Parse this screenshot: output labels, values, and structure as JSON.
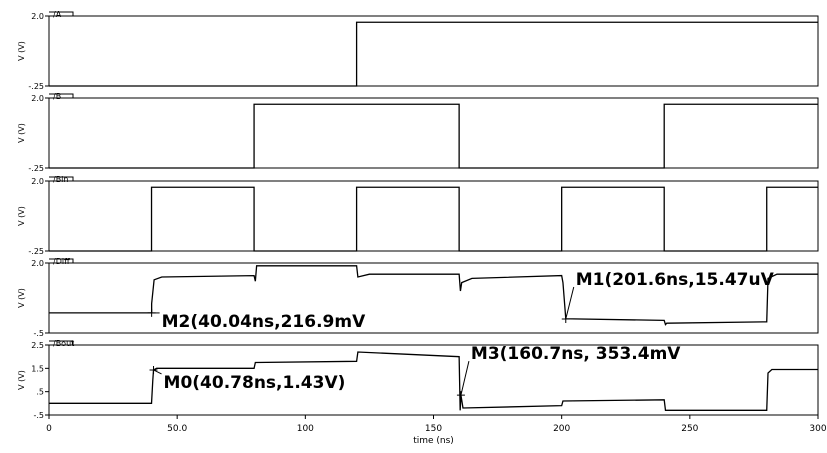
{
  "chart_data": {
    "type": "line",
    "x_axis": {
      "label": "time (ns)",
      "range": [
        0,
        300
      ],
      "ticks": [
        "0",
        "50.0",
        "100",
        "150",
        "200",
        "250",
        "300"
      ],
      "tick_values": [
        0,
        50,
        100,
        150,
        200,
        250,
        300
      ]
    },
    "panels": [
      {
        "name": "/A",
        "ylabel": "V (V)",
        "ylim": [
          -0.25,
          2.0
        ],
        "ticks": [
          {
            "label": "2.0",
            "value": 2.0
          },
          {
            "label": "-.25",
            "value": -0.25
          }
        ],
        "points": [
          [
            0,
            -0.25
          ],
          [
            120,
            -0.25
          ],
          [
            120,
            1.8
          ],
          [
            300,
            1.8
          ]
        ]
      },
      {
        "name": "/B",
        "ylabel": "V (V)",
        "ylim": [
          -0.25,
          2.0
        ],
        "ticks": [
          {
            "label": "2.0",
            "value": 2.0
          },
          {
            "label": "-.25",
            "value": -0.25
          }
        ],
        "points": [
          [
            0,
            -0.25
          ],
          [
            80,
            -0.25
          ],
          [
            80,
            1.8
          ],
          [
            160,
            1.8
          ],
          [
            160,
            -0.25
          ],
          [
            240,
            -0.25
          ],
          [
            240,
            1.8
          ],
          [
            300,
            1.8
          ]
        ]
      },
      {
        "name": "/Bin",
        "ylabel": "V (V)",
        "ylim": [
          -0.25,
          2.0
        ],
        "ticks": [
          {
            "label": "2.0",
            "value": 2.0
          },
          {
            "label": "-.25",
            "value": -0.25
          }
        ],
        "points": [
          [
            0,
            -0.25
          ],
          [
            40,
            -0.25
          ],
          [
            40,
            1.8
          ],
          [
            80,
            1.8
          ],
          [
            80,
            -0.25
          ],
          [
            120,
            -0.25
          ],
          [
            120,
            1.8
          ],
          [
            160,
            1.8
          ],
          [
            160,
            -0.25
          ],
          [
            200,
            -0.25
          ],
          [
            200,
            1.8
          ],
          [
            240,
            1.8
          ],
          [
            240,
            -0.25
          ],
          [
            280,
            -0.25
          ],
          [
            280,
            1.8
          ],
          [
            300,
            1.8
          ]
        ]
      },
      {
        "name": "/Diff",
        "ylabel": "V (V)",
        "ylim": [
          -0.5,
          2.0
        ],
        "ticks": [
          {
            "label": "2.0",
            "value": 2.0
          },
          {
            "label": "-.5",
            "value": -0.5
          }
        ],
        "points": [
          [
            0,
            0.22
          ],
          [
            40.04,
            0.22
          ],
          [
            40.04,
            0.55
          ],
          [
            41,
            1.4
          ],
          [
            44,
            1.5
          ],
          [
            80,
            1.55
          ],
          [
            80.5,
            1.35
          ],
          [
            81,
            1.9
          ],
          [
            120,
            1.9
          ],
          [
            120.5,
            1.5
          ],
          [
            125,
            1.6
          ],
          [
            160,
            1.6
          ],
          [
            160.5,
            1.0
          ],
          [
            161,
            1.3
          ],
          [
            165,
            1.45
          ],
          [
            200,
            1.55
          ],
          [
            200.5,
            1.3
          ],
          [
            201.6,
            0.01
          ],
          [
            240,
            -0.05
          ],
          [
            240.5,
            -0.2
          ],
          [
            241,
            -0.15
          ],
          [
            280,
            -0.1
          ],
          [
            280.5,
            1.45
          ],
          [
            284,
            1.6
          ],
          [
            300,
            1.6
          ]
        ],
        "markers": [
          {
            "label": "M2(40.04ns,216.9mV",
            "x": 40.04,
            "y": 0.2169
          },
          {
            "label": "M1(201.6ns,15.47uV",
            "x": 201.6,
            "y": 1.55e-05
          }
        ]
      },
      {
        "name": "/Bout",
        "ylabel": "V (V)",
        "ylim": [
          -0.5,
          2.5
        ],
        "ticks": [
          {
            "label": "2.5",
            "value": 2.5
          },
          {
            "label": "1.5",
            "value": 1.5
          },
          {
            "label": ".5",
            "value": 0.5
          },
          {
            "label": "-.5",
            "value": -0.5
          }
        ],
        "points": [
          [
            0,
            0.0
          ],
          [
            40,
            0.0
          ],
          [
            40.5,
            1.0
          ],
          [
            40.78,
            1.43
          ],
          [
            42,
            1.5
          ],
          [
            80,
            1.5
          ],
          [
            80.5,
            1.75
          ],
          [
            120,
            1.8
          ],
          [
            120.5,
            2.2
          ],
          [
            160,
            2.0
          ],
          [
            160.4,
            -0.3
          ],
          [
            160.7,
            0.3534
          ],
          [
            161.5,
            -0.2
          ],
          [
            200,
            -0.1
          ],
          [
            200.5,
            0.1
          ],
          [
            240,
            0.15
          ],
          [
            240.5,
            -0.3
          ],
          [
            280,
            -0.3
          ],
          [
            280.5,
            1.3
          ],
          [
            282,
            1.45
          ],
          [
            300,
            1.45
          ]
        ],
        "markers": [
          {
            "label": "M0(40.78ns,1.43V)",
            "x": 40.78,
            "y": 1.43
          },
          {
            "label": "M3(160.7ns, 353.4mV",
            "x": 160.7,
            "y": 0.3534
          }
        ]
      }
    ],
    "colors": {
      "trace": "#000000",
      "frame": "#000000",
      "background": "#ffffff"
    }
  }
}
